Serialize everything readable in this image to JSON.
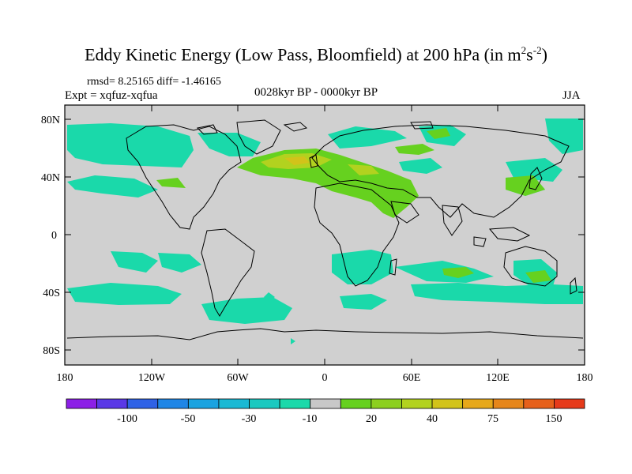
{
  "header": {
    "title_main": "Eddy Kinetic Energy (Low Pass, Bloomfield) at 200 hPa (in m",
    "title_sup1": "2",
    "title_mid": "s",
    "title_sup2": "-2",
    "title_end": ")",
    "stats": "rmsd= 8.25165 diff= -1.46165",
    "expt": "Expt = xqfuz-xqfua",
    "period": "0028kyr BP - 0000kyr BP",
    "season": "JJA"
  },
  "axes": {
    "lat_labels": [
      "80N",
      "40N",
      "0",
      "40S",
      "80S"
    ],
    "lon_labels": [
      "180",
      "120W",
      "60W",
      "0",
      "60E",
      "120E",
      "180"
    ]
  },
  "colorbar": {
    "colors": [
      "#8c1fe6",
      "#5a38e6",
      "#2f62e6",
      "#1f86e6",
      "#1aa3e0",
      "#1ab9d4",
      "#1ac9c0",
      "#1ad9aa",
      "#c8c8c8",
      "#66d11f",
      "#8ccf1f",
      "#b2d21f",
      "#d2c31a",
      "#e6a81a",
      "#e6861a",
      "#e6601a",
      "#e63a1a"
    ],
    "labels": [
      "-100",
      "-50",
      "-30",
      "-10",
      "20",
      "40",
      "75",
      "150"
    ]
  },
  "colors": {
    "land_sea_background": "#d0d0d0",
    "negative_anomaly": "#1ad9aa",
    "positive_anomaly": "#66d11f",
    "positive_strong": "#b2d21f",
    "positive_max": "#d2c31a"
  }
}
